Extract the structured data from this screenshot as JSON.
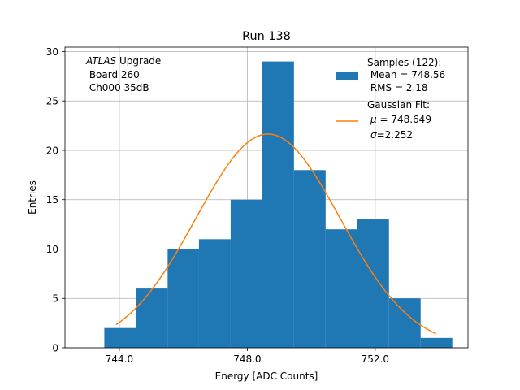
{
  "chart_data": {
    "type": "bar",
    "title": "Run 138",
    "xlabel": "Energy [ADC Counts]",
    "ylabel": "Entries",
    "xlim": [
      742.3,
      754.9
    ],
    "ylim": [
      0,
      30.45
    ],
    "grid": true,
    "bin_edges": [
      743.53,
      744.52,
      745.51,
      746.49,
      747.48,
      748.47,
      749.46,
      750.45,
      751.44,
      752.43,
      753.42,
      754.41
    ],
    "counts": [
      2,
      6,
      10,
      11,
      15,
      29,
      18,
      12,
      13,
      5,
      1
    ],
    "x_ticks": [
      744.0,
      748.0,
      752.0
    ],
    "x_tick_labels": [
      "744.0",
      "748.0",
      "752.0"
    ],
    "y_ticks": [
      0,
      5,
      10,
      15,
      20,
      25,
      30
    ],
    "y_tick_labels": [
      "0",
      "5",
      "10",
      "15",
      "20",
      "25",
      "30"
    ],
    "fit": {
      "name": "Gaussian Fit",
      "mean": 748.649,
      "sigma": 2.252,
      "amplitude": 21.65,
      "x_range": [
        743.9,
        753.9
      ],
      "color": "#ff7f0e"
    },
    "bar_color": "#1f77b4",
    "annotation": {
      "italic": "ATLAS",
      "rest": " Upgrade",
      "line2": " Board 260",
      "line3": " Ch000 35dB"
    },
    "legend": {
      "placement": "top-right",
      "samples": {
        "line1": "Samples (122):",
        "line2": " Mean = 748.56",
        "line3": " RMS = 2.18"
      },
      "fit": {
        "line1": "Gaussian Fit:",
        "mu_sym": "μ",
        "mu_text": " = 748.649",
        "sigma_sym": "σ",
        "sigma_text": "=2.252"
      }
    }
  }
}
